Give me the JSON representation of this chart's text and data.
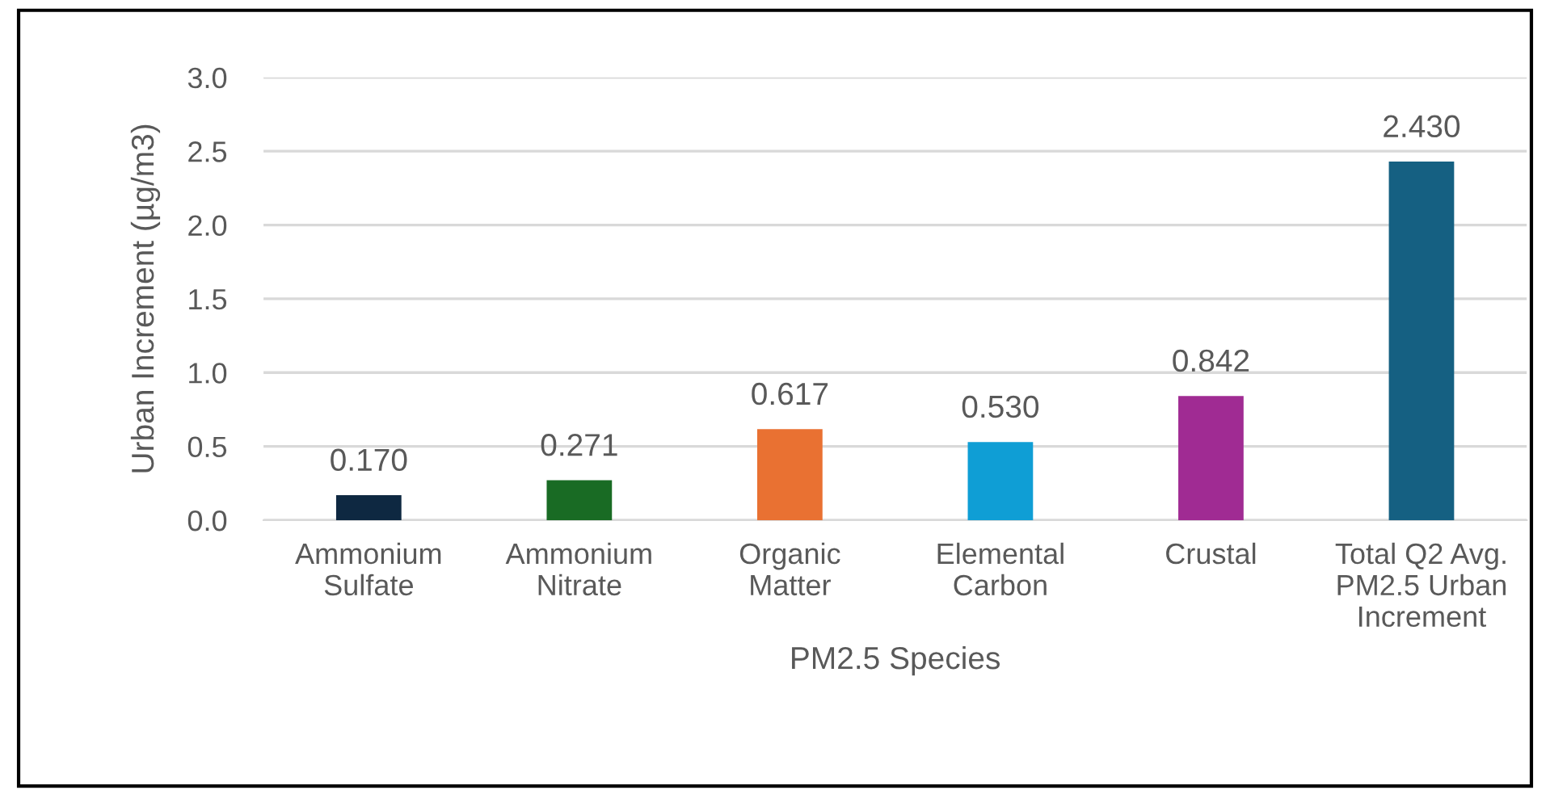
{
  "chart_data": {
    "type": "bar",
    "xlabel": "PM2.5 Species",
    "ylabel": "Urban Increment (µg/m3)",
    "categories": [
      "Ammonium\nSulfate",
      "Ammonium\nNitrate",
      "Organic\nMatter",
      "Elemental\nCarbon",
      "Crustal",
      "Total Q2 Avg.\nPM2.5 Urban\nIncrement"
    ],
    "values": [
      0.17,
      0.271,
      0.617,
      0.53,
      0.842,
      2.43
    ],
    "colors": [
      "#0e2841",
      "#196b24",
      "#e97132",
      "#0f9ed5",
      "#a02b93",
      "#156082"
    ],
    "value_labels": [
      "0.170",
      "0.271",
      "0.617",
      "0.530",
      "0.842",
      "2.430"
    ],
    "ylim": [
      0,
      3
    ],
    "yticks": [
      "0.0",
      "0.5",
      "1.0",
      "1.5",
      "2.0",
      "2.5",
      "3.0"
    ],
    "grid": "y"
  }
}
